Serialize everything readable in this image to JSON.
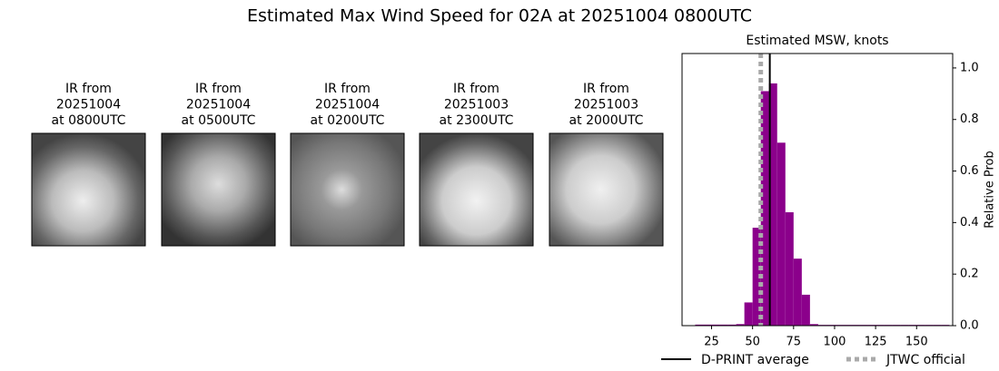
{
  "title": "Estimated Max Wind Speed for 02A at 20251004 0800UTC",
  "panels": [
    {
      "lines": [
        "IR from",
        "20251004",
        "at 0800UTC"
      ]
    },
    {
      "lines": [
        "IR from",
        "20251004",
        "at 0500UTC"
      ]
    },
    {
      "lines": [
        "IR from",
        "20251004",
        "at 0200UTC"
      ]
    },
    {
      "lines": [
        "IR from",
        "20251003",
        "at 2300UTC"
      ]
    },
    {
      "lines": [
        "IR from",
        "20251003",
        "at 2000UTC"
      ]
    }
  ],
  "chart_data": {
    "type": "histogram",
    "title": "Estimated MSW, knots",
    "y_label": "Relative Prob",
    "color": "#8b008b",
    "bins": [
      15,
      20,
      25,
      30,
      35,
      40,
      45,
      50,
      55,
      60,
      65,
      70,
      75,
      80,
      85,
      90,
      95,
      100,
      105,
      110,
      115,
      120,
      125,
      130,
      135,
      140,
      145,
      150,
      155,
      160,
      165,
      170
    ],
    "counts": [
      0.004,
      0.004,
      0.004,
      0.004,
      0.004,
      0.006,
      0.09,
      0.38,
      0.91,
      0.94,
      0.71,
      0.44,
      0.26,
      0.12,
      0.006,
      0.003,
      0.003,
      0.003,
      0.003,
      0.003,
      0.003,
      0.003,
      0.003,
      0.003,
      0.003,
      0.003,
      0.003,
      0.003,
      0.003,
      0.003,
      0.003
    ],
    "xlim": [
      7,
      172
    ],
    "ylim": [
      0,
      1.056
    ],
    "xticks": [
      25,
      50,
      75,
      100,
      125,
      150
    ],
    "yticks": [
      {
        "value": 0,
        "label": "0.0"
      },
      {
        "value": 0.2,
        "label": "0.2"
      },
      {
        "value": 0.4,
        "label": "0.4"
      },
      {
        "value": 0.6,
        "label": "0.6"
      },
      {
        "value": 0.8,
        "label": "0.8"
      },
      {
        "value": 1,
        "label": "1.0"
      }
    ],
    "lines": [
      {
        "name": "D-PRINT average",
        "x": 60.5,
        "color": "#000000",
        "dash": false
      },
      {
        "name": "JTWC official",
        "x": 55,
        "color": "#aaaaaa",
        "dash": true
      }
    ]
  }
}
